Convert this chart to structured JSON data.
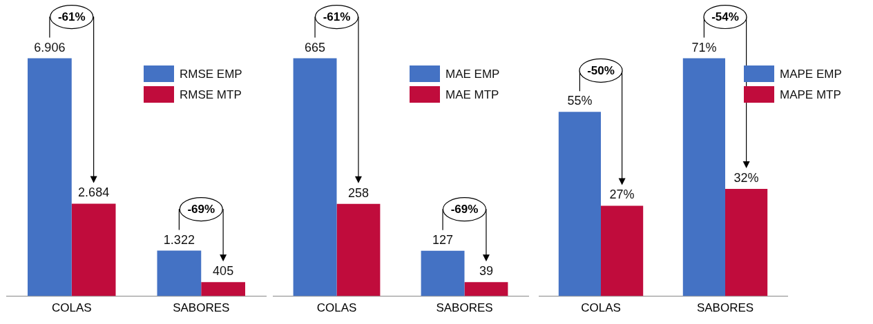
{
  "chart_data": [
    {
      "type": "bar",
      "categories": [
        "COLAS",
        "SABORES"
      ],
      "legend": "top right",
      "series": [
        {
          "name": "RMSE EMP",
          "color": "#4472c4",
          "values": [
            6906,
            1322
          ],
          "value_labels": [
            "6.906",
            "1.322"
          ]
        },
        {
          "name": "RMSE MTP",
          "color": "#c00c3c",
          "values": [
            2684,
            405
          ],
          "value_labels": [
            "2.684",
            "405"
          ]
        }
      ],
      "annotations": [
        {
          "text": "-61%",
          "x": "COLAS",
          "y": 6906
        },
        {
          "text": "-69%",
          "x": "SABORES",
          "y": 1322
        }
      ]
    },
    {
      "type": "bar",
      "categories": [
        "COLAS",
        "SABORES"
      ],
      "legend": "top right",
      "series": [
        {
          "name": "MAE EMP",
          "color": "#4472c4",
          "values": [
            665,
            127
          ],
          "value_labels": [
            "665",
            "127"
          ]
        },
        {
          "name": "MAE MTP",
          "color": "#c00c3c",
          "values": [
            258,
            39
          ],
          "value_labels": [
            "258",
            "39"
          ]
        }
      ],
      "annotations": [
        {
          "text": "-61%",
          "x": "COLAS",
          "y": 665
        },
        {
          "text": "-69%",
          "x": "SABORES",
          "y": 127
        }
      ]
    },
    {
      "type": "bar",
      "categories": [
        "COLAS",
        "SABORES"
      ],
      "legend": "top right",
      "series": [
        {
          "name": "MAPE EMP",
          "color": "#4472c4",
          "values": [
            55,
            71
          ],
          "value_labels": [
            "55%",
            "71%"
          ]
        },
        {
          "name": "MAPE MTP",
          "color": "#c00c3c",
          "values": [
            27,
            32
          ],
          "value_labels": [
            "27%",
            "32%"
          ]
        }
      ],
      "annotations": [
        {
          "text": "-50%",
          "x": "COLAS",
          "y": 55
        },
        {
          "text": "-54%",
          "x": "SABORES",
          "y": 71
        }
      ]
    }
  ]
}
